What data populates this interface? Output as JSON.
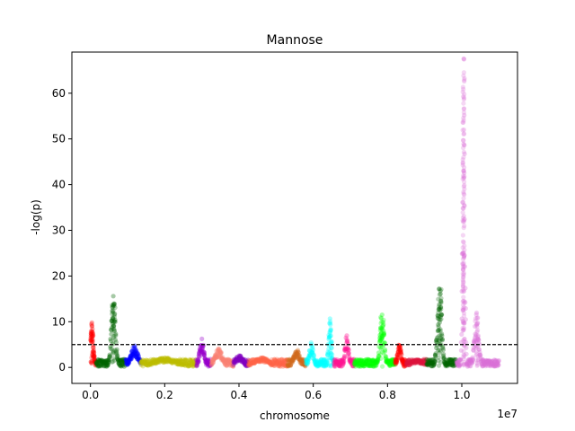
{
  "chart_data": {
    "type": "scatter",
    "title": "Mannose",
    "xlabel": "chromosome",
    "ylabel": "-log(p)",
    "x_offset_text": "1e7",
    "xlim": [
      -0.05,
      1.15
    ],
    "ylim": [
      -3.5,
      69
    ],
    "x_ticks": [
      0.0,
      0.2,
      0.4,
      0.6,
      0.8,
      1.0
    ],
    "x_tick_labels": [
      "0.0",
      "0.2",
      "0.4",
      "0.6",
      "0.8",
      "1.0"
    ],
    "y_ticks": [
      0,
      10,
      20,
      30,
      40,
      50,
      60
    ],
    "y_tick_labels": [
      "0",
      "10",
      "20",
      "30",
      "40",
      "50",
      "60"
    ],
    "threshold": 5,
    "grid": false,
    "segments": [
      {
        "start": 0.0,
        "end": 0.015,
        "color": "#ff0000",
        "peaks": [
          {
            "x": 0.004,
            "h": 9.5,
            "w": 0.004
          }
        ]
      },
      {
        "start": 0.015,
        "end": 0.095,
        "color": "#006400",
        "peaks": [
          {
            "x": 0.062,
            "h": 14.5,
            "w": 0.006
          }
        ]
      },
      {
        "start": 0.095,
        "end": 0.135,
        "color": "#0000ff",
        "peaks": [
          {
            "x": 0.118,
            "h": 4.5,
            "w": 0.01
          }
        ]
      },
      {
        "start": 0.135,
        "end": 0.285,
        "color": "#bcbd00",
        "peaks": [
          {
            "x": 0.2,
            "h": 2.0,
            "w": 0.03
          }
        ]
      },
      {
        "start": 0.285,
        "end": 0.325,
        "color": "#9900cc",
        "peaks": [
          {
            "x": 0.3,
            "h": 6.0,
            "w": 0.006
          }
        ]
      },
      {
        "start": 0.325,
        "end": 0.385,
        "color": "#fa8072",
        "peaks": [
          {
            "x": 0.345,
            "h": 4.0,
            "w": 0.01
          }
        ]
      },
      {
        "start": 0.385,
        "end": 0.425,
        "color": "#8000c0",
        "peaks": [
          {
            "x": 0.4,
            "h": 2.5,
            "w": 0.01
          }
        ]
      },
      {
        "start": 0.425,
        "end": 0.53,
        "color": "#ff6347",
        "peaks": [
          {
            "x": 0.46,
            "h": 2.0,
            "w": 0.02
          }
        ]
      },
      {
        "start": 0.53,
        "end": 0.58,
        "color": "#d2691e",
        "peaks": [
          {
            "x": 0.555,
            "h": 4.0,
            "w": 0.008
          }
        ]
      },
      {
        "start": 0.58,
        "end": 0.655,
        "color": "#00ffff",
        "peaks": [
          {
            "x": 0.595,
            "h": 5.0,
            "w": 0.006
          },
          {
            "x": 0.645,
            "h": 10.0,
            "w": 0.004
          }
        ]
      },
      {
        "start": 0.655,
        "end": 0.71,
        "color": "#ff1493",
        "peaks": [
          {
            "x": 0.69,
            "h": 6.5,
            "w": 0.005
          }
        ]
      },
      {
        "start": 0.71,
        "end": 0.82,
        "color": "#00ff00",
        "peaks": [
          {
            "x": 0.785,
            "h": 11.0,
            "w": 0.006
          }
        ]
      },
      {
        "start": 0.82,
        "end": 0.85,
        "color": "#ff0000",
        "peaks": [
          {
            "x": 0.832,
            "h": 5.0,
            "w": 0.005
          }
        ]
      },
      {
        "start": 0.85,
        "end": 0.905,
        "color": "#dc143c",
        "peaks": [
          {
            "x": 0.88,
            "h": 1.5,
            "w": 0.02
          }
        ]
      },
      {
        "start": 0.905,
        "end": 0.985,
        "color": "#006400",
        "peaks": [
          {
            "x": 0.94,
            "h": 17.0,
            "w": 0.006
          }
        ]
      },
      {
        "start": 0.985,
        "end": 1.1,
        "color": "#da70d6",
        "peaks": [
          {
            "x": 1.005,
            "h": 64.0,
            "w": 0.003
          },
          {
            "x": 1.04,
            "h": 11.0,
            "w": 0.006
          }
        ]
      }
    ]
  }
}
